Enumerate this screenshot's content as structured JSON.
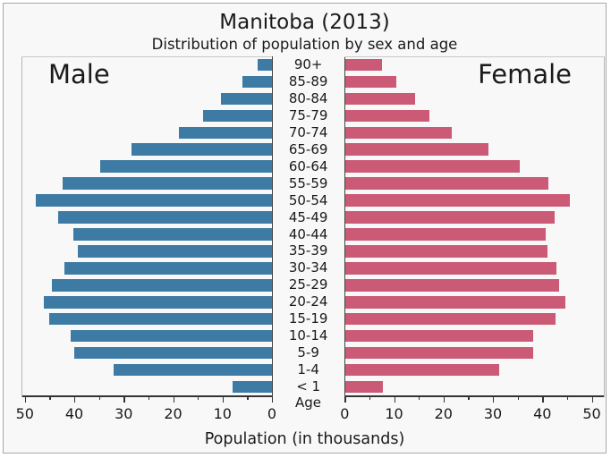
{
  "title": "Manitoba (2013)",
  "subtitle": "Distribution of population by sex and age",
  "male_label": "Male",
  "female_label": "Female",
  "age_axis_label": "Age",
  "x_axis_label": "Population (in thousands)",
  "colors": {
    "male": "#3e7ba4",
    "female": "#ca5a76",
    "background": "#f8f8f8",
    "frame_border": "#a8a8a8",
    "axis": "#333333"
  },
  "chart_data": {
    "type": "bar",
    "variant": "population-pyramid",
    "title": "Manitoba (2013)",
    "subtitle": "Distribution of population by sex and age",
    "xlabel": "Population (in thousands)",
    "age_label": "Age",
    "xlim": [
      0,
      51
    ],
    "major_ticks": [
      0,
      10,
      20,
      30,
      40,
      50
    ],
    "minor_ticks": [
      5,
      15,
      25,
      35,
      45
    ],
    "categories": [
      "90+",
      "85-89",
      "80-84",
      "75-79",
      "70-74",
      "65-69",
      "60-64",
      "55-59",
      "50-54",
      "45-49",
      "40-44",
      "35-39",
      "30-34",
      "25-29",
      "20-24",
      "15-19",
      "10-14",
      "5-9",
      "1-4",
      "< 1"
    ],
    "series": [
      {
        "name": "Male",
        "side": "left",
        "values": [
          2.9,
          6.0,
          10.4,
          13.9,
          18.9,
          28.4,
          34.8,
          42.4,
          47.8,
          43.2,
          40.2,
          39.2,
          42.0,
          44.5,
          46.2,
          45.0,
          40.8,
          40.0,
          32.1,
          8.0
        ]
      },
      {
        "name": "Female",
        "side": "right",
        "values": [
          7.5,
          10.4,
          14.3,
          17.2,
          21.6,
          29.0,
          35.5,
          41.3,
          45.6,
          42.5,
          40.7,
          41.0,
          42.8,
          43.4,
          44.7,
          42.7,
          38.2,
          38.2,
          31.2,
          7.7
        ]
      }
    ],
    "legend": "none",
    "grid": false
  }
}
